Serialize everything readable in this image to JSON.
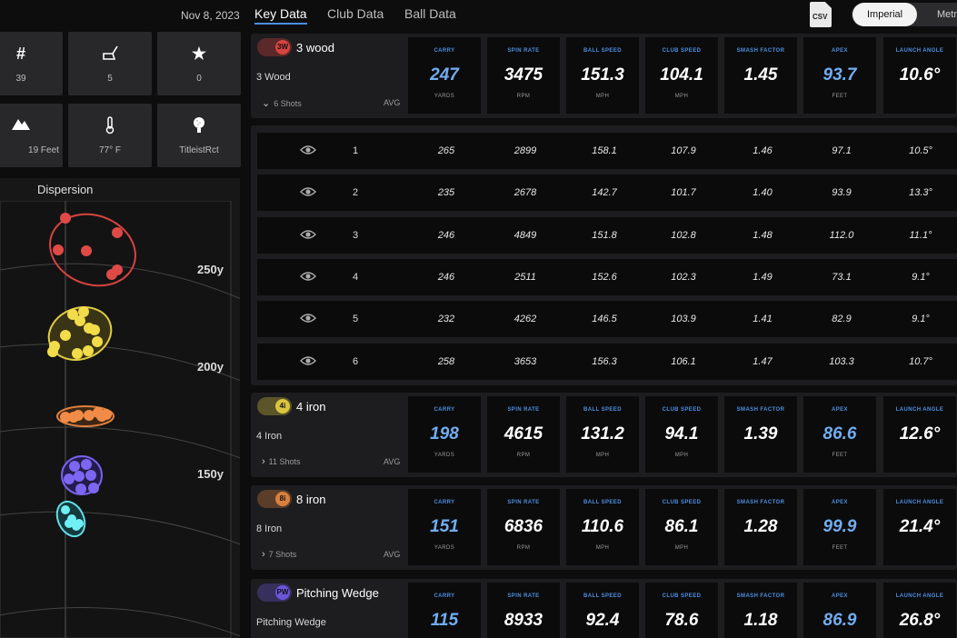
{
  "header": {
    "date": "Nov 8, 2023",
    "tabs": [
      "Key Data",
      "Club Data",
      "Ball Data"
    ],
    "csv_label": "CSV",
    "units": [
      "Imperial",
      "Metr"
    ]
  },
  "tiles": [
    {
      "icon": "hash-icon",
      "glyph": "#",
      "value": "39"
    },
    {
      "icon": "club-icon",
      "glyph": "⛳",
      "value": "5"
    },
    {
      "icon": "star-icon",
      "glyph": "★",
      "value": "0"
    },
    {
      "icon": "elevation-icon",
      "glyph": "▲",
      "value": "19 Feet"
    },
    {
      "icon": "thermometer-icon",
      "glyph": "🌡",
      "value": "77° F"
    },
    {
      "icon": "golf-ball-icon",
      "glyph": "●",
      "value": "TitleistRct"
    }
  ],
  "dispersion": {
    "title": "Dispersion",
    "yard_labels": [
      "250y",
      "200y",
      "150y"
    ]
  },
  "metric_labels": [
    "CARRY",
    "SPIN RATE",
    "BALL SPEED",
    "CLUB SPEED",
    "SMASH FACTOR",
    "APEX",
    "LAUNCH ANGLE"
  ],
  "metric_units": [
    "YARDS",
    "RPM",
    "MPH",
    "MPH",
    "",
    "FEET",
    ""
  ],
  "clubs": [
    {
      "badge": "3W",
      "color": "#d9433f",
      "name": "3 wood",
      "sub": "3 Wood",
      "shots": "6 Shots",
      "avg": "AVG",
      "values": [
        "247",
        "3475",
        "151.3",
        "104.1",
        "1.45",
        "93.7",
        "10.6°"
      ]
    },
    {
      "badge": "4i",
      "color": "#d9c540",
      "name": "4 iron",
      "sub": "4 Iron",
      "shots": "11 Shots",
      "avg": "AVG",
      "values": [
        "198",
        "4615",
        "131.2",
        "94.1",
        "1.39",
        "86.6",
        "12.6°"
      ]
    },
    {
      "badge": "8i",
      "color": "#d9803f",
      "name": "8 iron",
      "sub": "8 Iron",
      "shots": "7 Shots",
      "avg": "AVG",
      "values": [
        "151",
        "6836",
        "110.6",
        "86.1",
        "1.28",
        "99.9",
        "21.4°"
      ]
    },
    {
      "badge": "PW",
      "color": "#6b55d9",
      "name": "Pitching Wedge",
      "sub": "Pitching Wedge",
      "shots": "",
      "avg": "",
      "values": [
        "115",
        "8933",
        "92.4",
        "78.6",
        "1.18",
        "86.9",
        "26.8°"
      ]
    }
  ],
  "shots": [
    {
      "n": "1",
      "values": [
        "265",
        "2899",
        "158.1",
        "107.9",
        "1.46",
        "97.1",
        "10.5°"
      ]
    },
    {
      "n": "2",
      "values": [
        "235",
        "2678",
        "142.7",
        "101.7",
        "1.40",
        "93.9",
        "13.3°"
      ]
    },
    {
      "n": "3",
      "values": [
        "246",
        "4849",
        "151.8",
        "102.8",
        "1.48",
        "112.0",
        "11.1°"
      ]
    },
    {
      "n": "4",
      "values": [
        "246",
        "2511",
        "152.6",
        "102.3",
        "1.49",
        "73.1",
        "9.1°"
      ]
    },
    {
      "n": "5",
      "values": [
        "232",
        "4262",
        "146.5",
        "103.9",
        "1.41",
        "82.9",
        "9.1°"
      ]
    },
    {
      "n": "6",
      "values": [
        "258",
        "3653",
        "156.3",
        "106.1",
        "1.47",
        "103.3",
        "10.7°"
      ]
    }
  ]
}
